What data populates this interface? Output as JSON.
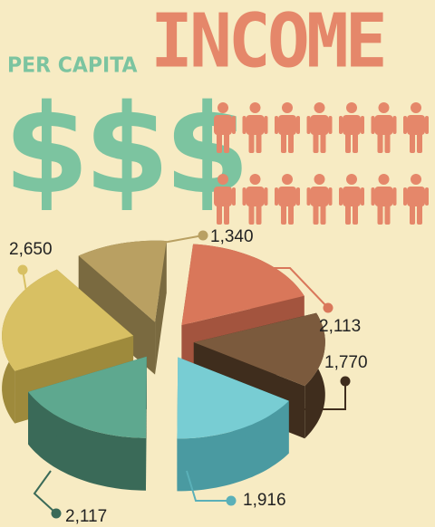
{
  "header": {
    "subtitle": "PER CAPITA",
    "title": "INCOME",
    "symbol": "$$$"
  },
  "people_icons": {
    "count": 14,
    "icon": "person-icon",
    "color": "#e5876a"
  },
  "chart_data": {
    "type": "pie",
    "title": "",
    "slices": [
      {
        "label": "1,340",
        "value": 1340,
        "top": "#b9a062",
        "side": "#7a6a40",
        "dot": "#b9a062"
      },
      {
        "label": "2,113",
        "value": 2113,
        "top": "#d9775a",
        "side": "#a3543e",
        "dot": "#d9775a"
      },
      {
        "label": "1,770",
        "value": 1770,
        "top": "#7b5a3d",
        "side": "#3f2d1d",
        "dot": "#3f2d1d"
      },
      {
        "label": "1,916",
        "value": 1916,
        "top": "#78cdd3",
        "side": "#4a9aa1",
        "dot": "#5ab0b8"
      },
      {
        "label": "2,117",
        "value": 2117,
        "top": "#5ea88f",
        "side": "#3a6a58",
        "dot": "#3a6a58"
      },
      {
        "label": "2,650",
        "value": 2650,
        "top": "#d8c063",
        "side": "#9e8a3c",
        "dot": "#d8c063"
      }
    ]
  }
}
